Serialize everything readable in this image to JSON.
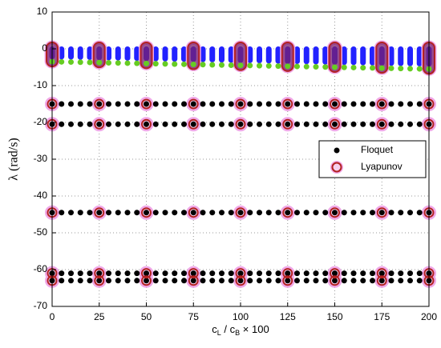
{
  "chart_data": {
    "type": "scatter",
    "xlabel": [
      "c",
      "L",
      " / c",
      "B",
      " × 100"
    ],
    "ylabel": "λ (rad/s)",
    "xlim": [
      0,
      200
    ],
    "xticks": [
      0,
      25,
      50,
      75,
      100,
      125,
      150,
      175,
      200
    ],
    "ylim": [
      -70,
      10
    ],
    "yticks": [
      -70,
      -60,
      -50,
      -40,
      -30,
      -20,
      -10,
      0,
      10
    ],
    "grid": true,
    "legend": "right",
    "band": {
      "color": "#2222ff",
      "top": 0
    },
    "green": {
      "color": "#66cc22",
      "values": [
        -3.5,
        -3.55,
        -3.6,
        -3.65,
        -3.7,
        -3.75,
        -3.8,
        -3.85,
        -3.9,
        -3.95,
        -4,
        -4.05,
        -4.1,
        -4.15,
        -4.2,
        -4.25,
        -4.3,
        -4.35,
        -4.4,
        -4.45,
        -4.5,
        -4.55,
        -4.6,
        -4.65,
        -4.7,
        -4.75,
        -4.8,
        -4.85,
        -4.9,
        -4.95,
        -5,
        -5.05,
        -5.1,
        -5.15,
        -5.2,
        -5.25,
        -5.3,
        -5.35,
        -5.4,
        -5.45,
        -5.5
      ]
    },
    "series": [
      {
        "name": "Floquet",
        "color": "#000000",
        "x": [
          0,
          5,
          10,
          15,
          20,
          25,
          30,
          35,
          40,
          45,
          50,
          55,
          60,
          65,
          70,
          75,
          80,
          85,
          90,
          95,
          100,
          105,
          110,
          115,
          120,
          125,
          130,
          135,
          140,
          145,
          150,
          155,
          160,
          165,
          170,
          175,
          180,
          185,
          190,
          195,
          200
        ],
        "rows": [
          [
            -15,
            -15,
            -15,
            -15,
            -15,
            -15,
            -15,
            -15,
            -15,
            -15,
            -15,
            -15,
            -15,
            -15,
            -15,
            -15,
            -15,
            -15,
            -15,
            -15,
            -15,
            -15,
            -15,
            -15,
            -15,
            -15,
            -15,
            -15,
            -15,
            -15,
            -15,
            -15,
            -15,
            -15,
            -15,
            -15,
            -15,
            -15,
            -15,
            -15,
            -15
          ],
          [
            -20.5,
            -20.5,
            -20.5,
            -20.5,
            -20.5,
            -20.5,
            -20.5,
            -20.5,
            -20.5,
            -20.5,
            -20.5,
            -20.5,
            -20.5,
            -20.5,
            -20.5,
            -20.5,
            -20.5,
            -20.5,
            -20.5,
            -20.5,
            -20.5,
            -20.5,
            -20.5,
            -20.5,
            -20.5,
            -20.5,
            -20.5,
            -20.5,
            -20.5,
            -20.5,
            -20.5,
            -20.5,
            -20.5,
            -20.5,
            -20.5,
            -20.5,
            -20.5,
            -20.5,
            -20.5,
            -20.5,
            -20.5
          ],
          [
            -44.5,
            -44.5,
            -44.5,
            -44.5,
            -44.5,
            -44.5,
            -44.5,
            -44.5,
            -44.5,
            -44.5,
            -44.5,
            -44.5,
            -44.5,
            -44.5,
            -44.5,
            -44.5,
            -44.5,
            -44.5,
            -44.5,
            -44.5,
            -44.5,
            -44.5,
            -44.5,
            -44.5,
            -44.5,
            -44.5,
            -44.5,
            -44.5,
            -44.5,
            -44.5,
            -44.5,
            -44.5,
            -44.5,
            -44.5,
            -44.5,
            -44.5,
            -44.5,
            -44.5,
            -44.5,
            -44.5,
            -44.5
          ],
          [
            -61,
            -61,
            -61,
            -61,
            -61,
            -61,
            -61,
            -61,
            -61,
            -61,
            -61,
            -61,
            -61,
            -61,
            -61,
            -61,
            -61,
            -61,
            -61,
            -61,
            -61,
            -61,
            -61,
            -61,
            -61,
            -61,
            -61,
            -61,
            -61,
            -61,
            -61,
            -61,
            -61,
            -61,
            -61,
            -61,
            -61,
            -61,
            -61,
            -61,
            -61
          ],
          [
            -63,
            -63,
            -63,
            -63,
            -63,
            -63,
            -63,
            -63,
            -63,
            -63,
            -63,
            -63,
            -63,
            -63,
            -63,
            -63,
            -63,
            -63,
            -63,
            -63,
            -63,
            -63,
            -63,
            -63,
            -63,
            -63,
            -63,
            -63,
            -63,
            -63,
            -63,
            -63,
            -63,
            -63,
            -63,
            -63,
            -63,
            -63,
            -63,
            -63,
            -63
          ]
        ]
      },
      {
        "name": "Lyapunov",
        "color": "#b22222",
        "x": [
          0,
          25,
          50,
          75,
          100,
          125,
          150,
          175,
          200
        ],
        "capsule_top": 0,
        "capsule_bottom": [
          -3.5,
          -3.75,
          -4,
          -4.25,
          -4.5,
          -4.75,
          -5,
          -5.25,
          -5.5
        ],
        "rows": [
          [
            -15,
            -15,
            -15,
            -15,
            -15,
            -15,
            -15,
            -15,
            -15
          ],
          [
            -20.5,
            -20.5,
            -20.5,
            -20.5,
            -20.5,
            -20.5,
            -20.5,
            -20.5,
            -20.5
          ],
          [
            -44.5,
            -44.5,
            -44.5,
            -44.5,
            -44.5,
            -44.5,
            -44.5,
            -44.5,
            -44.5
          ],
          [
            -61,
            -61,
            -61,
            -61,
            -61,
            -61,
            -61,
            -61,
            -61
          ],
          [
            -63,
            -63,
            -63,
            -63,
            -63,
            -63,
            -63,
            -63,
            -63
          ]
        ]
      }
    ]
  }
}
